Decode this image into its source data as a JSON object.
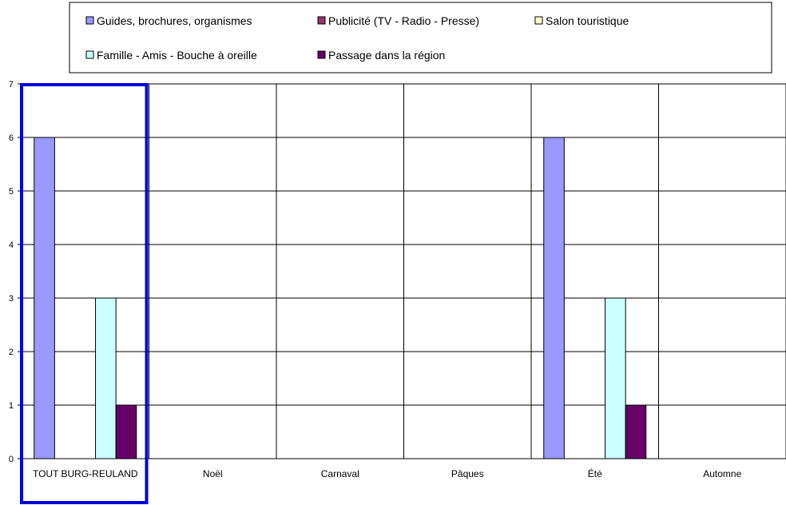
{
  "chart_data": {
    "type": "bar",
    "categories": [
      "TOUT BURG-REULAND",
      "Noël",
      "Carnaval",
      "Pâques",
      "Été",
      "Automne"
    ],
    "series": [
      {
        "name": "Guides, brochures, organismes",
        "color": "#9999ff",
        "values": [
          6,
          0,
          0,
          0,
          6,
          0
        ]
      },
      {
        "name": "Publicité (TV - Radio - Presse)",
        "color": "#993366",
        "values": [
          0,
          0,
          0,
          0,
          0,
          0
        ]
      },
      {
        "name": "Salon touristique",
        "color": "#ffffcc",
        "values": [
          0,
          0,
          0,
          0,
          0,
          0
        ]
      },
      {
        "name": "Famille - Amis - Bouche à oreille",
        "color": "#ccffff",
        "values": [
          3,
          0,
          0,
          0,
          3,
          0
        ]
      },
      {
        "name": "Passage dans la région",
        "color": "#660066",
        "values": [
          1,
          0,
          0,
          0,
          1,
          0
        ]
      }
    ],
    "ylim": [
      0,
      7
    ],
    "yticks": [
      0,
      1,
      2,
      3,
      4,
      5,
      6,
      7
    ],
    "grid": true,
    "legend_position": "top",
    "highlight_category": "TOUT BURG-REULAND",
    "highlight_color": "#0000dd"
  }
}
